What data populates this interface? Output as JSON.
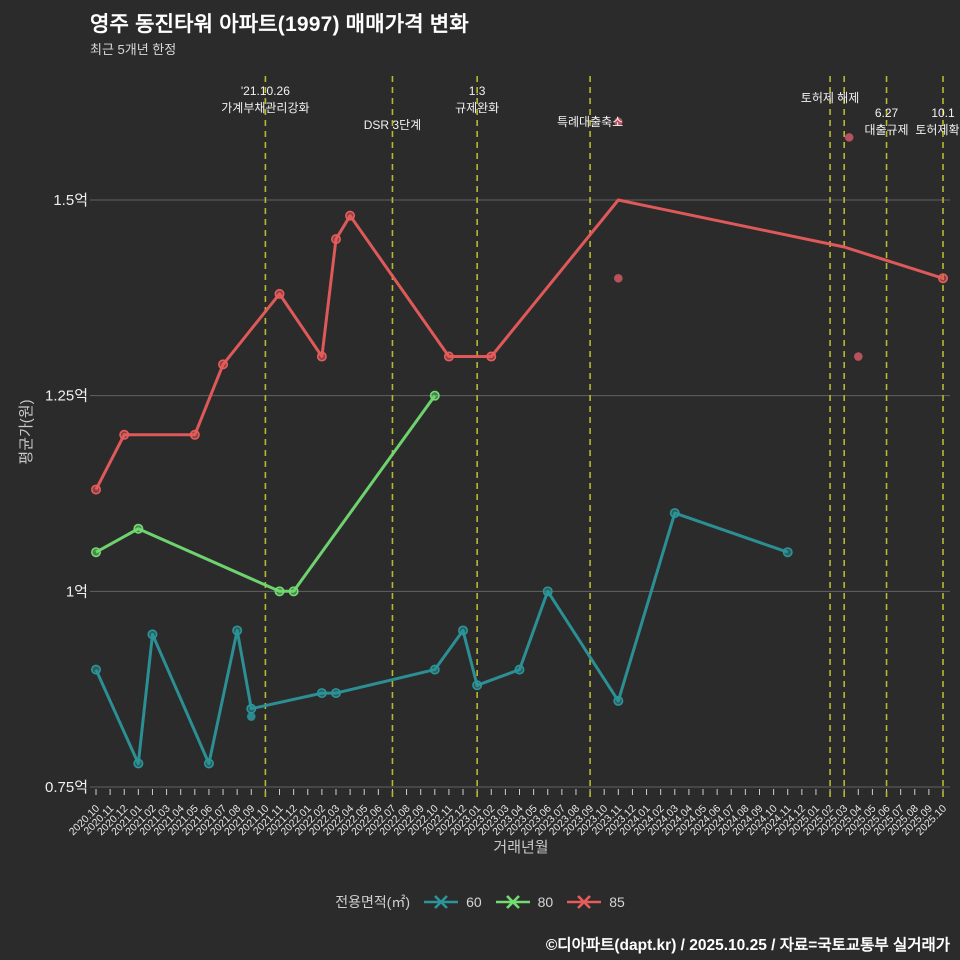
{
  "header": {
    "title": "영주 동진타워 아파트(1997) 매매가격 변화",
    "subtitle": "최근 5개년 한정"
  },
  "legend": {
    "title": "전용면적(㎡)"
  },
  "footer": {
    "credit": "©디아파트(dapt.kr) / 2025.10.25 / 자료=국토교통부 실거래가"
  },
  "chart_data": {
    "type": "line",
    "title": "영주 동진타워 아파트(1997) 매매가격 변화",
    "subtitle": "최근 5개년 한정",
    "unit": "억",
    "x_axis": {
      "label": "거래년월",
      "ticks": [
        "2020.10",
        "2020.11",
        "2020.12",
        "2021.01",
        "2021.02",
        "2021.03",
        "2021.04",
        "2021.05",
        "2021.06",
        "2021.07",
        "2021.08",
        "2021.09",
        "2021.10",
        "2021.11",
        "2021.12",
        "2022.01",
        "2022.02",
        "2022.03",
        "2022.04",
        "2022.05",
        "2022.06",
        "2022.07",
        "2022.08",
        "2022.09",
        "2022.10",
        "2022.11",
        "2022.12",
        "2023.01",
        "2023.02",
        "2023.03",
        "2023.04",
        "2023.05",
        "2023.06",
        "2023.07",
        "2023.08",
        "2023.09",
        "2023.10",
        "2023.11",
        "2023.12",
        "2024.01",
        "2024.02",
        "2024.03",
        "2024.04",
        "2024.05",
        "2024.06",
        "2024.07",
        "2024.08",
        "2024.09",
        "2024.10",
        "2024.11",
        "2024.12",
        "2025.01",
        "2025.02",
        "2025.03",
        "2025.04",
        "2025.05",
        "2025.06",
        "2025.07",
        "2025.08",
        "2025.09",
        "2025.10"
      ]
    },
    "y_axis": {
      "label": "평균가(원)",
      "ticks": [
        "0.75억",
        "1억",
        "1.25억",
        "1.5억"
      ],
      "tick_values": [
        0.75,
        1,
        1.25,
        1.5
      ],
      "range": [
        0.75,
        1.5
      ]
    },
    "legend_title": "전용면적(㎡)",
    "series": [
      {
        "name": "60",
        "color": "#2b9599",
        "points": [
          [
            "2020.10",
            0.9
          ],
          [
            "2021.01",
            0.78
          ],
          [
            "2021.02",
            0.945
          ],
          [
            "2021.06",
            0.78
          ],
          [
            "2021.08",
            0.95
          ],
          [
            "2021.09",
            0.85
          ],
          [
            "2022.02",
            0.87
          ],
          [
            "2022.03",
            0.87
          ],
          [
            "2022.10",
            0.9
          ],
          [
            "2022.12",
            0.95
          ],
          [
            "2023.01",
            0.88
          ],
          [
            "2023.04",
            0.9
          ],
          [
            "2023.06",
            1.0
          ],
          [
            "2023.11",
            0.86
          ],
          [
            "2024.03",
            1.1
          ],
          [
            "2024.11",
            1.05
          ]
        ]
      },
      {
        "name": "80",
        "color": "#72db72",
        "points": [
          [
            "2020.10",
            1.05
          ],
          [
            "2021.01",
            1.08
          ],
          [
            "2021.11",
            1.0
          ],
          [
            "2021.12",
            1.0
          ],
          [
            "2022.10",
            1.25
          ]
        ]
      },
      {
        "name": "85",
        "color": "#e85c5c",
        "points": [
          [
            "2020.10",
            1.13
          ],
          [
            "2020.12",
            1.2
          ],
          [
            "2021.05",
            1.2
          ],
          [
            "2021.07",
            1.29
          ],
          [
            "2021.11",
            1.38
          ],
          [
            "2022.02",
            1.3
          ],
          [
            "2022.03",
            1.45
          ],
          [
            "2022.04",
            1.48
          ],
          [
            "2022.11",
            1.3
          ],
          [
            "2023.02",
            1.3
          ],
          [
            "2023.11",
            1.5,
            false
          ],
          [
            "2025.03",
            1.44,
            false
          ],
          [
            "2025.10",
            1.4
          ]
        ]
      }
    ],
    "transaction_dots": [
      {
        "series": "85",
        "month": "2023.11",
        "value": 1.6
      },
      {
        "series": "85",
        "month": "2023.11",
        "value": 1.4
      },
      {
        "series": "85",
        "month": "2025.03",
        "value": 1.58,
        "dx": 5
      },
      {
        "series": "85",
        "month": "2025.04",
        "value": 1.3
      },
      {
        "series": "60",
        "month": "2021.09",
        "value": 0.84
      }
    ],
    "annotations": [
      {
        "month": "2021.10",
        "lines": [
          "'21.10.26",
          "가계부채관리강화"
        ],
        "baseline": 95
      },
      {
        "month": "2022.07",
        "lines": [
          "DSR 3단계"
        ],
        "baseline": 129
      },
      {
        "month": "2023.01",
        "lines": [
          "1.3",
          "규제완화"
        ],
        "baseline": 95
      },
      {
        "month": "2023.09",
        "lines": [
          "특례대출축소"
        ],
        "baseline": 126
      },
      {
        "month": "2025.02",
        "lines": [
          "토허제 해제"
        ],
        "baseline": 102
      },
      {
        "month": "2025.03",
        "lines": [],
        "baseline": 0
      },
      {
        "month": "2025.06",
        "lines": [
          "6.27",
          "대출규제"
        ],
        "baseline": 117
      },
      {
        "month": "2025.10",
        "lines": [
          "10.1",
          "토허제확대"
        ],
        "baseline": 117
      }
    ],
    "colors": {
      "background": "#2b2b2b",
      "grid": "#9a9a9a",
      "annotation_line": "#b8b830",
      "dot": "#c75562",
      "tick_text": "#e8e8e8",
      "axis_title_text": "#c9c9c9",
      "annotation_text": "#f2f2f2"
    }
  }
}
